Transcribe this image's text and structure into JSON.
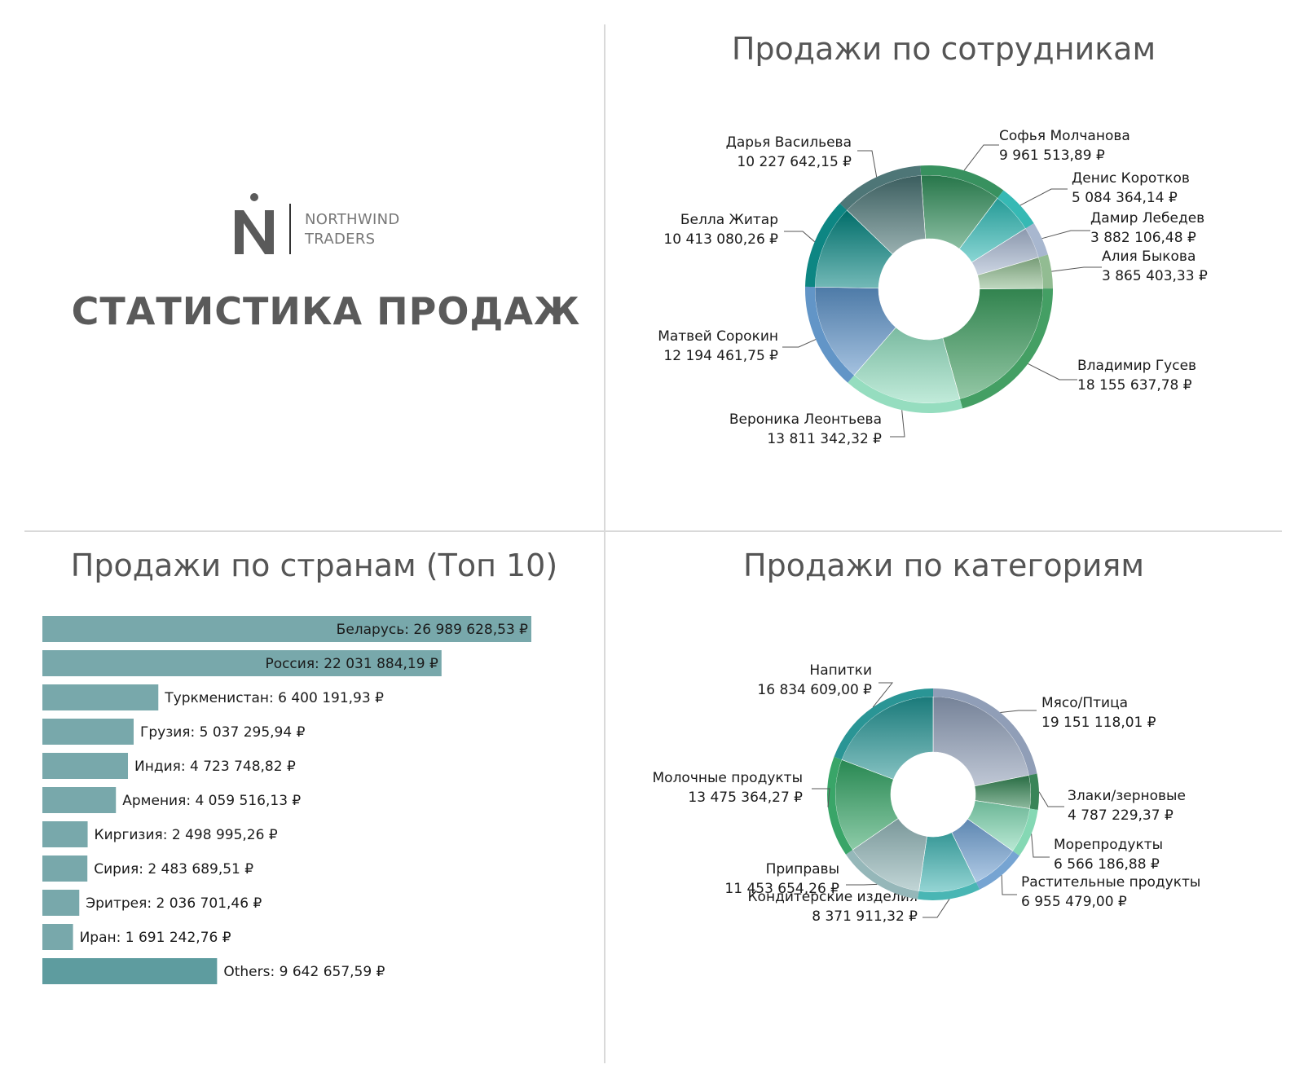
{
  "logo": {
    "line1": "NORTHWIND",
    "line2": "TRADERS"
  },
  "main_title": "СТАТИСТИКА ПРОДАЖ",
  "chart_data": [
    {
      "type": "pie",
      "title": "Продажи по сотрудникам",
      "slices": [
        {
          "name": "Софья Молчанова",
          "value_label": "9 961 513,89 ₽",
          "value": 9961513.89,
          "color": "#2e8b57"
        },
        {
          "name": "Денис Коротков",
          "value_label": "5 084 364,14 ₽",
          "value": 5084364.14,
          "color": "#2bb5b0"
        },
        {
          "name": "Дамир Лебедев",
          "value_label": "3 882 106,48 ₽",
          "value": 3882106.48,
          "color": "#a3b3cc"
        },
        {
          "name": "Алия Быкова",
          "value_label": "3 865 403,33 ₽",
          "value": 3865403.33,
          "color": "#8cb88c"
        },
        {
          "name": "Владимир Гусев",
          "value_label": "18 155 637,78 ₽",
          "value": 18155637.78,
          "color": "#3a9a5c"
        },
        {
          "name": "Вероника Леонтьева",
          "value_label": "13 811 342,32 ₽",
          "value": 13811342.32,
          "color": "#8fdbbc"
        },
        {
          "name": "Матвей Сорокин",
          "value_label": "12 194 461,75 ₽",
          "value": 12194461.75,
          "color": "#5a8fc4"
        },
        {
          "name": "Белла Житар",
          "value_label": "10 413 080,26 ₽",
          "value": 10413080.26,
          "color": "#00807c"
        },
        {
          "name": "Дарья Васильева",
          "value_label": "10 227 642,15 ₽",
          "value": 10227642.15,
          "color": "#456f70"
        }
      ]
    },
    {
      "type": "bar",
      "title": "Продажи по странам (Топ 10)",
      "bars": [
        {
          "label": "Беларусь: 26 989 628,53 ₽",
          "value": 26989628.53
        },
        {
          "label": "Россия: 22 031 884,19 ₽",
          "value": 22031884.19
        },
        {
          "label": "Туркменистан: 6 400 191,93 ₽",
          "value": 6400191.93
        },
        {
          "label": "Грузия: 5 037 295,94 ₽",
          "value": 5037295.94
        },
        {
          "label": "Индия: 4 723 748,82 ₽",
          "value": 4723748.82
        },
        {
          "label": "Армения: 4 059 516,13 ₽",
          "value": 4059516.13
        },
        {
          "label": "Киргизия: 2 498 995,26 ₽",
          "value": 2498995.26
        },
        {
          "label": "Сирия: 2 483 689,51 ₽",
          "value": 2483689.51
        },
        {
          "label": "Эритрея: 2 036 701,46 ₽",
          "value": 2036701.46
        },
        {
          "label": "Иран: 1 691 242,76 ₽",
          "value": 1691242.76
        },
        {
          "label": "Others: 9 642 657,59 ₽",
          "value": 9642657.59
        }
      ],
      "bar_color": "#78a8ab",
      "others_color": "#5e9c9f"
    },
    {
      "type": "pie",
      "title": "Продажи по категориям",
      "slices": [
        {
          "name": "Мясо/Птица",
          "value_label": "19 151 118,01 ₽",
          "value": 19151118.01,
          "color": "#8a99b3"
        },
        {
          "name": "Злаки/зерновые",
          "value_label": "4 787 229,37 ₽",
          "value": 4787229.37,
          "color": "#2f7f4f"
        },
        {
          "name": "Морепродукты",
          "value_label": "6 566 186,88 ₽",
          "value": 6566186.88,
          "color": "#7fd6b0"
        },
        {
          "name": "Растительные продукты",
          "value_label": "6 955 479,00 ₽",
          "value": 6955479.0,
          "color": "#6f9fd0"
        },
        {
          "name": "Кондитерские изделия",
          "value_label": "8 371 911,32 ₽",
          "value": 8371911.32,
          "color": "#3fb2b0"
        },
        {
          "name": "Приправы",
          "value_label": "11 453 654,26 ₽",
          "value": 11453654.26,
          "color": "#8fb3b5"
        },
        {
          "name": "Молочные продукты",
          "value_label": "13 475 364,27 ₽",
          "value": 13475364.27,
          "color": "#2fa060"
        },
        {
          "name": "Напитки",
          "value_label": "16 834 609,00 ₽",
          "value": 16834609.0,
          "color": "#1f8f8f"
        }
      ]
    }
  ]
}
